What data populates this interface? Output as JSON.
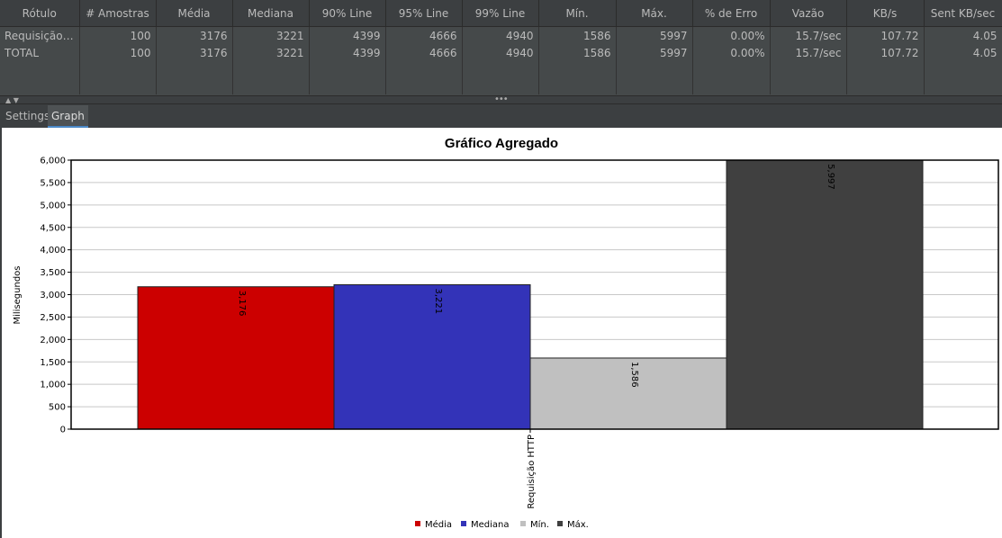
{
  "table": {
    "headers": [
      "Rótulo",
      "# Amostras",
      "Média",
      "Mediana",
      "90% Line",
      "95% Line",
      "99% Line",
      "Mín.",
      "Máx.",
      "% de Erro",
      "Vazão",
      "KB/s",
      "Sent KB/sec"
    ],
    "rows": [
      [
        "Requisição ...",
        "100",
        "3176",
        "3221",
        "4399",
        "4666",
        "4940",
        "1586",
        "5997",
        "0.00%",
        "15.7/sec",
        "107.72",
        "4.05"
      ],
      [
        "TOTAL",
        "100",
        "3176",
        "3221",
        "4399",
        "4666",
        "4940",
        "1586",
        "5997",
        "0.00%",
        "15.7/sec",
        "107.72",
        "4.05"
      ]
    ]
  },
  "splitter": {
    "arrows": "▲ ▼",
    "handle": "•••"
  },
  "tabs": [
    {
      "label": "Settings"
    },
    {
      "label": "Graph"
    }
  ],
  "active_tab": "Graph",
  "chart_data": {
    "type": "bar",
    "title": "Gráfico Agregado",
    "xlabel": "",
    "ylabel": "Milisegundos",
    "categories": [
      "Requisição HTTP"
    ],
    "series": [
      {
        "name": "Média",
        "values": [
          3176
        ],
        "color": "#cc0000",
        "label": "3,176"
      },
      {
        "name": "Mediana",
        "values": [
          3221
        ],
        "color": "#3333b8",
        "label": "3,221"
      },
      {
        "name": "Mín.",
        "values": [
          1586
        ],
        "color": "#c0c0c0",
        "label": "1,586"
      },
      {
        "name": "Máx.",
        "values": [
          5997
        ],
        "color": "#404040",
        "label": "5,997"
      }
    ],
    "ylim": [
      0,
      6000
    ],
    "yticks": [
      0,
      500,
      1000,
      1500,
      2000,
      2500,
      3000,
      3500,
      4000,
      4500,
      5000,
      5500,
      6000
    ],
    "ytick_labels": [
      "0",
      "500",
      "1,000",
      "1,500",
      "2,000",
      "2,500",
      "3,000",
      "3,500",
      "4,000",
      "4,500",
      "5,000",
      "5,500",
      "6,000"
    ],
    "grid": true,
    "legend": "bottom"
  }
}
